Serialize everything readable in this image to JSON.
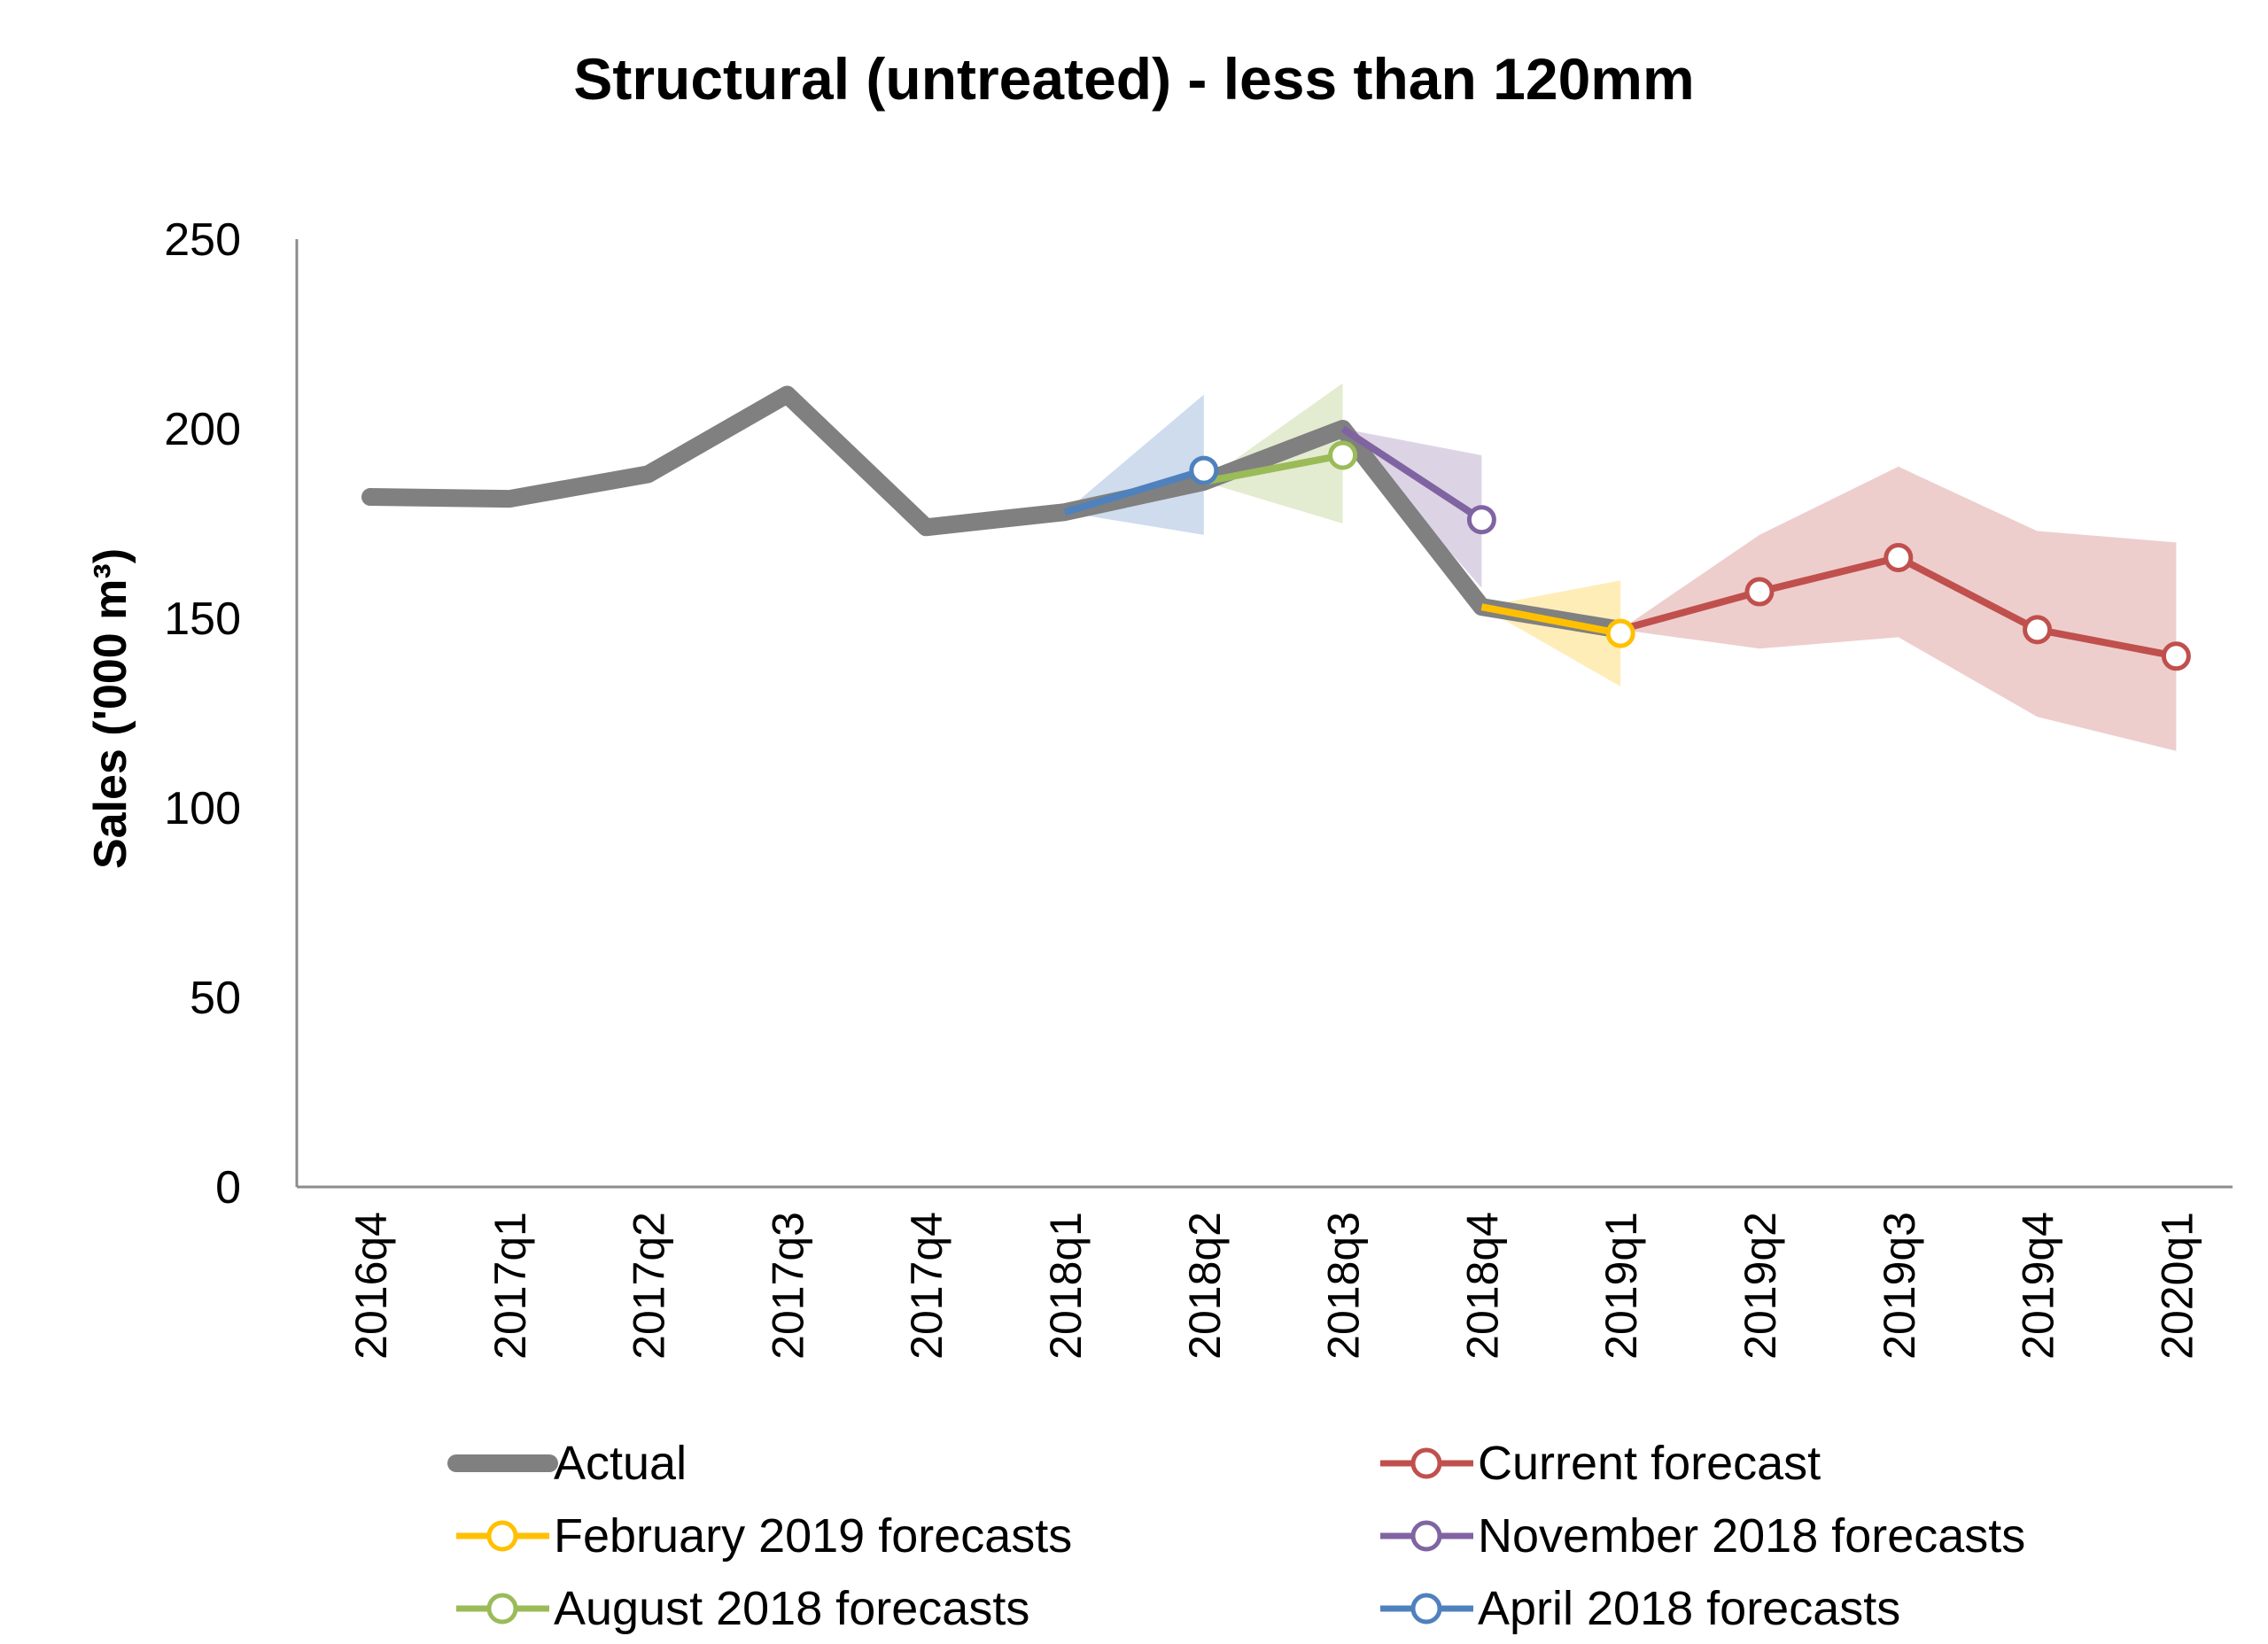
{
  "chart_data": {
    "type": "line",
    "title": "Structural (untreated) - less than 120mm",
    "ylabel": "Sales ('000 m³)",
    "xlabel": "",
    "ylim": [
      0,
      250
    ],
    "yticks": [
      0,
      50,
      100,
      150,
      200,
      250
    ],
    "grid": false,
    "categories": [
      "2016q4",
      "2017q1",
      "2017q2",
      "2017q3",
      "2017q4",
      "2018q1",
      "2018q2",
      "2018q3",
      "2018q4",
      "2019q1",
      "2019q2",
      "2019q3",
      "2019q4",
      "2020q1"
    ],
    "series": [
      {
        "name": "Actual",
        "color": "#808080",
        "values": [
          182,
          181.5,
          188,
          209,
          174,
          178,
          186,
          200,
          153,
          147,
          null,
          null,
          null,
          null
        ]
      },
      {
        "name": "Current forecast",
        "color": "#c0504d",
        "marker": "open-circle",
        "values": [
          null,
          null,
          null,
          null,
          null,
          null,
          null,
          null,
          null,
          147,
          157,
          166,
          147,
          140
        ],
        "band_lower": [
          null,
          null,
          null,
          null,
          null,
          null,
          null,
          null,
          null,
          147,
          142,
          145,
          124,
          115
        ],
        "band_upper": [
          null,
          null,
          null,
          null,
          null,
          null,
          null,
          null,
          null,
          147,
          172,
          190,
          173,
          170
        ]
      },
      {
        "name": "February 2019 forecasts",
        "color": "#ffc000",
        "marker": "open-circle",
        "values": [
          null,
          null,
          null,
          null,
          null,
          null,
          null,
          null,
          153,
          146,
          null,
          null,
          null,
          null
        ],
        "band_lower": [
          null,
          null,
          null,
          null,
          null,
          null,
          null,
          null,
          153,
          132,
          null,
          null,
          null,
          null
        ],
        "band_upper": [
          null,
          null,
          null,
          null,
          null,
          null,
          null,
          null,
          153,
          160,
          null,
          null,
          null,
          null
        ]
      },
      {
        "name": "November 2018 forecasts",
        "color": "#8064a2",
        "marker": "open-circle",
        "values": [
          null,
          null,
          null,
          null,
          null,
          null,
          null,
          200,
          176,
          null,
          null,
          null,
          null,
          null
        ],
        "band_lower": [
          null,
          null,
          null,
          null,
          null,
          null,
          null,
          200,
          158,
          null,
          null,
          null,
          null,
          null
        ],
        "band_upper": [
          null,
          null,
          null,
          null,
          null,
          null,
          null,
          200,
          193,
          null,
          null,
          null,
          null,
          null
        ]
      },
      {
        "name": "August 2018 forecasts",
        "color": "#9bbb59",
        "marker": "open-circle",
        "values": [
          null,
          null,
          null,
          null,
          null,
          null,
          186,
          193,
          null,
          null,
          null,
          null,
          null,
          null
        ],
        "band_lower": [
          null,
          null,
          null,
          null,
          null,
          null,
          186,
          175,
          null,
          null,
          null,
          null,
          null,
          null
        ],
        "band_upper": [
          null,
          null,
          null,
          null,
          null,
          null,
          186,
          212,
          null,
          null,
          null,
          null,
          null,
          null
        ]
      },
      {
        "name": "April 2018 forecasts",
        "color": "#4f81bd",
        "marker": "open-circle",
        "values": [
          null,
          null,
          null,
          null,
          null,
          178,
          189,
          null,
          null,
          null,
          null,
          null,
          null,
          null
        ],
        "band_lower": [
          null,
          null,
          null,
          null,
          null,
          178,
          172,
          null,
          null,
          null,
          null,
          null,
          null,
          null
        ],
        "band_upper": [
          null,
          null,
          null,
          null,
          null,
          178,
          209,
          null,
          null,
          null,
          null,
          null,
          null,
          null
        ]
      }
    ],
    "legend": {
      "placement": "bottom",
      "columns": [
        [
          "Actual",
          "February 2019 forecasts",
          "August 2018 forecasts"
        ],
        [
          "Current forecast",
          "November 2018 forecasts",
          "April 2018 forecasts"
        ]
      ]
    }
  }
}
